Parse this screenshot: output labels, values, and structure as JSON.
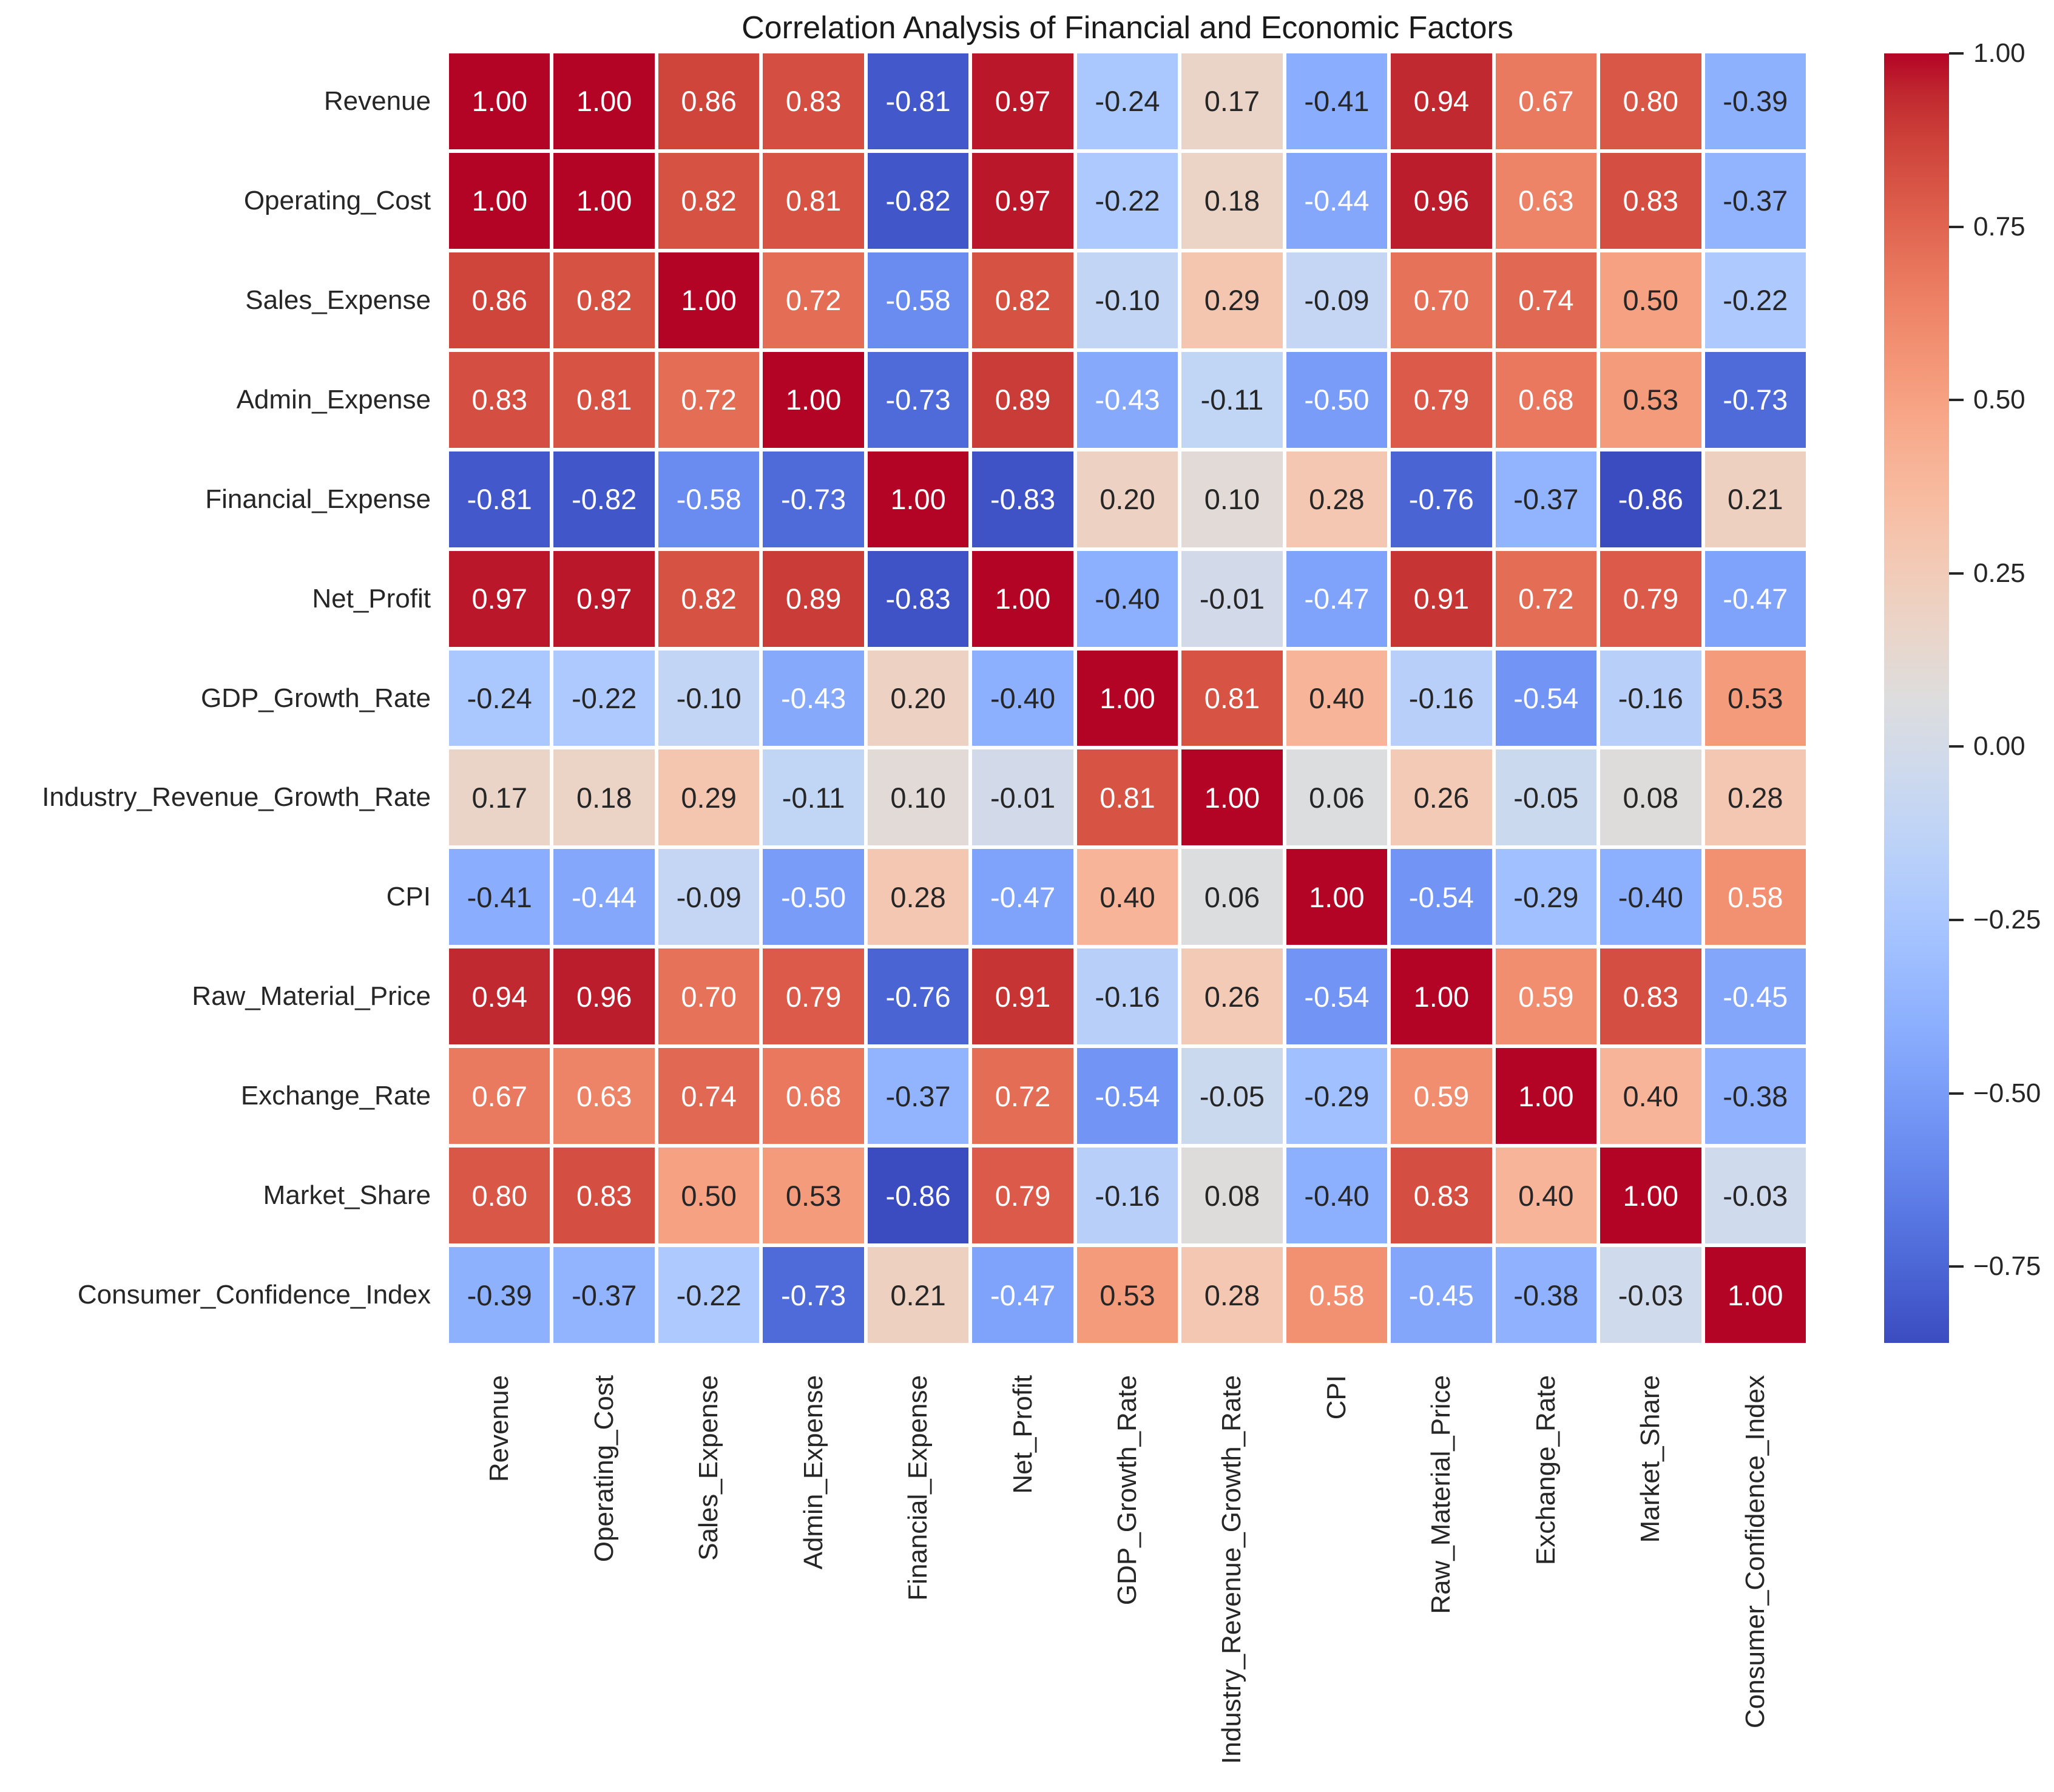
{
  "title": "Correlation Analysis of Financial and Economic Factors",
  "chart_data": {
    "type": "heatmap",
    "title": "Correlation Analysis of Financial and Economic Factors",
    "categories": [
      "Revenue",
      "Operating_Cost",
      "Sales_Expense",
      "Admin_Expense",
      "Financial_Expense",
      "Net_Profit",
      "GDP_Growth_Rate",
      "Industry_Revenue_Growth_Rate",
      "CPI",
      "Raw_Material_Price",
      "Exchange_Rate",
      "Market_Share",
      "Consumer_Confidence_Index"
    ],
    "matrix": [
      [
        1.0,
        1.0,
        0.86,
        0.83,
        -0.81,
        0.97,
        -0.24,
        0.17,
        -0.41,
        0.94,
        0.67,
        0.8,
        -0.39
      ],
      [
        1.0,
        1.0,
        0.82,
        0.81,
        -0.82,
        0.97,
        -0.22,
        0.18,
        -0.44,
        0.96,
        0.63,
        0.83,
        -0.37
      ],
      [
        0.86,
        0.82,
        1.0,
        0.72,
        -0.58,
        0.82,
        -0.1,
        0.29,
        -0.09,
        0.7,
        0.74,
        0.5,
        -0.22
      ],
      [
        0.83,
        0.81,
        0.72,
        1.0,
        -0.73,
        0.89,
        -0.43,
        -0.11,
        -0.5,
        0.79,
        0.68,
        0.53,
        -0.73
      ],
      [
        -0.81,
        -0.82,
        -0.58,
        -0.73,
        1.0,
        -0.83,
        0.2,
        0.1,
        0.28,
        -0.76,
        -0.37,
        -0.86,
        0.21
      ],
      [
        0.97,
        0.97,
        0.82,
        0.89,
        -0.83,
        1.0,
        -0.4,
        -0.01,
        -0.47,
        0.91,
        0.72,
        0.79,
        -0.47
      ],
      [
        -0.24,
        -0.22,
        -0.1,
        -0.43,
        0.2,
        -0.4,
        1.0,
        0.81,
        0.4,
        -0.16,
        -0.54,
        -0.16,
        0.53
      ],
      [
        0.17,
        0.18,
        0.29,
        -0.11,
        0.1,
        -0.01,
        0.81,
        1.0,
        0.06,
        0.26,
        -0.05,
        0.08,
        0.28
      ],
      [
        -0.41,
        -0.44,
        -0.09,
        -0.5,
        0.28,
        -0.47,
        0.4,
        0.06,
        1.0,
        -0.54,
        -0.29,
        -0.4,
        0.58
      ],
      [
        0.94,
        0.96,
        0.7,
        0.79,
        -0.76,
        0.91,
        -0.16,
        0.26,
        -0.54,
        1.0,
        0.59,
        0.83,
        -0.45
      ],
      [
        0.67,
        0.63,
        0.74,
        0.68,
        -0.37,
        0.72,
        -0.54,
        -0.05,
        -0.29,
        0.59,
        1.0,
        0.4,
        -0.38
      ],
      [
        0.8,
        0.83,
        0.5,
        0.53,
        -0.86,
        0.79,
        -0.16,
        0.08,
        -0.4,
        0.83,
        0.4,
        1.0,
        -0.03
      ],
      [
        -0.39,
        -0.37,
        -0.22,
        -0.73,
        0.21,
        -0.47,
        0.53,
        0.28,
        0.58,
        -0.45,
        -0.38,
        -0.03,
        1.0
      ]
    ],
    "vmin": -0.86,
    "vmax": 1.0,
    "colormap": "coolwarm",
    "grid_line_color": "#ffffff",
    "annotation_colors": {
      "light": "#ffffff",
      "dark": "#262626"
    },
    "legend_position": "right",
    "colorbar_ticks": [
      {
        "value": 1.0,
        "label": "1.00"
      },
      {
        "value": 0.75,
        "label": "0.75"
      },
      {
        "value": 0.5,
        "label": "0.50"
      },
      {
        "value": 0.25,
        "label": "0.25"
      },
      {
        "value": 0.0,
        "label": "0.00"
      },
      {
        "value": -0.25,
        "label": "−0.25"
      },
      {
        "value": -0.5,
        "label": "−0.50"
      },
      {
        "value": -0.75,
        "label": "−0.75"
      }
    ]
  }
}
